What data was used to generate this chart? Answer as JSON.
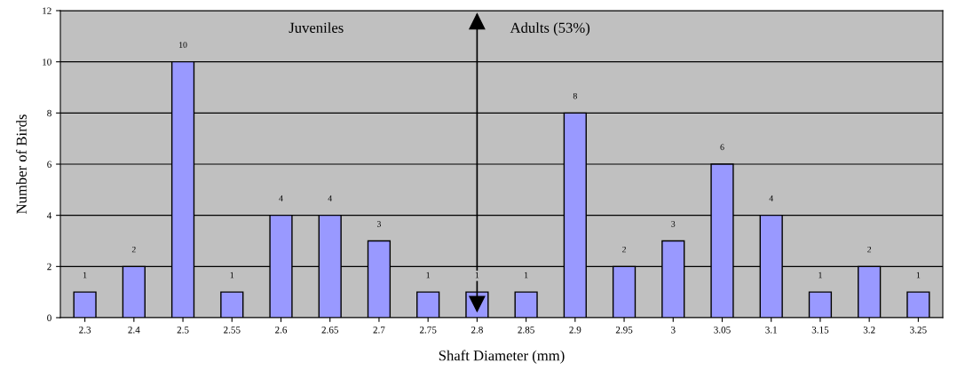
{
  "chart_data": {
    "type": "bar",
    "xlabel": "Shaft Diameter (mm)",
    "ylabel": "Number of Birds",
    "categories": [
      "2.3",
      "2.4",
      "2.5",
      "2.55",
      "2.6",
      "2.65",
      "2.7",
      "2.75",
      "2.8",
      "2.85",
      "2.9",
      "2.95",
      "3",
      "3.05",
      "3.1",
      "3.15",
      "3.2",
      "3.25"
    ],
    "values": [
      1,
      2,
      10,
      1,
      4,
      4,
      3,
      1,
      1,
      1,
      8,
      2,
      3,
      6,
      4,
      1,
      2,
      1
    ],
    "color": "#9999ff",
    "data_labels": true,
    "ylim": [
      0,
      12
    ],
    "yticks": [
      0,
      2,
      4,
      6,
      8,
      10,
      12
    ],
    "grid": "y",
    "ref_lines": [
      {
        "axis": "x",
        "value": "2.8",
        "color": "#000000",
        "line_style": "solid"
      }
    ],
    "annotations": [
      "Juveniles",
      "Adults (53%)"
    ]
  }
}
